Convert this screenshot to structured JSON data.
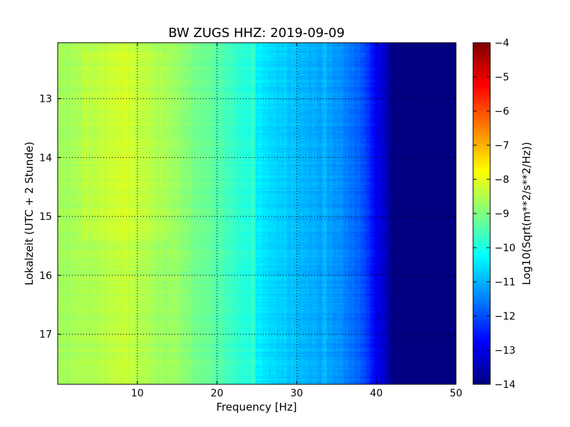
{
  "chart_data": {
    "type": "heatmap",
    "title": "BW ZUGS HHZ: 2019-09-09",
    "xlabel": "Frequency [Hz]",
    "ylabel": "Lokalzeit (UTC + 2 Stunde)",
    "xlim": [
      0,
      50
    ],
    "ylim": [
      12.05,
      17.85
    ],
    "y_inverted": true,
    "x_ticks": [
      10,
      20,
      30,
      40,
      50
    ],
    "y_ticks": [
      13,
      14,
      15,
      16,
      17
    ],
    "grid": true,
    "colormap": "jet",
    "colorbar": {
      "label": "Log10(Sqrt(m**2/s**2/Hz))",
      "range": [
        -14,
        -4
      ],
      "ticks": [
        -4,
        -5,
        -6,
        -7,
        -8,
        -9,
        -10,
        -11,
        -12,
        -13,
        -14
      ]
    },
    "frequency_profile_hz": [
      0,
      5,
      8.5,
      10,
      15,
      20,
      24.5,
      25,
      30,
      35,
      38,
      40,
      41.5,
      42,
      50
    ],
    "frequency_profile_log_psd": [
      -8.7,
      -8.5,
      -8.3,
      -8.5,
      -8.8,
      -9.4,
      -10.0,
      -10.4,
      -10.9,
      -11.3,
      -11.8,
      -12.8,
      -13.6,
      -14.0,
      -14.0
    ]
  }
}
